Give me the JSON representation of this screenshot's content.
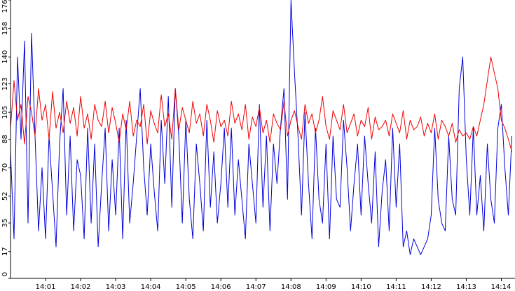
{
  "chart_data": {
    "type": "line",
    "title": "",
    "xlabel": "",
    "ylabel": "",
    "ylim": [
      0,
      176
    ],
    "xlim": [
      0.0,
      14.35
    ],
    "y_ticks": [
      0,
      17,
      35,
      52,
      70,
      88,
      105,
      123,
      140,
      158,
      176
    ],
    "x_ticks": [
      {
        "x": 1,
        "label": "14:01"
      },
      {
        "x": 2,
        "label": "14:02"
      },
      {
        "x": 3,
        "label": "14:03"
      },
      {
        "x": 4,
        "label": "14:04"
      },
      {
        "x": 5,
        "label": "14:05"
      },
      {
        "x": 6,
        "label": "14:06"
      },
      {
        "x": 7,
        "label": "14:07"
      },
      {
        "x": 8,
        "label": "14:08"
      },
      {
        "x": 9,
        "label": "14:09"
      },
      {
        "x": 10,
        "label": "14:10"
      },
      {
        "x": 11,
        "label": "14:11"
      },
      {
        "x": 12,
        "label": "14:12"
      },
      {
        "x": 13,
        "label": "14:13"
      },
      {
        "x": 14,
        "label": "14:14"
      }
    ],
    "grid": false,
    "legend": "none",
    "colors": {
      "series_1": "#0000dd",
      "series_2": "#ee0000"
    },
    "series": [
      {
        "color": "#0000dd",
        "x": [
          0.0,
          0.1,
          0.2,
          0.3,
          0.4,
          0.5,
          0.6,
          0.7,
          0.8,
          0.9,
          1.0,
          1.1,
          1.2,
          1.3,
          1.4,
          1.5,
          1.6,
          1.7,
          1.8,
          1.9,
          2.0,
          2.1,
          2.2,
          2.3,
          2.4,
          2.5,
          2.6,
          2.7,
          2.8,
          2.9,
          3.0,
          3.1,
          3.2,
          3.3,
          3.4,
          3.5,
          3.6,
          3.7,
          3.8,
          3.9,
          4.0,
          4.1,
          4.2,
          4.3,
          4.4,
          4.5,
          4.6,
          4.7,
          4.8,
          4.9,
          5.0,
          5.1,
          5.2,
          5.3,
          5.4,
          5.5,
          5.6,
          5.7,
          5.8,
          5.9,
          6.0,
          6.1,
          6.2,
          6.3,
          6.4,
          6.5,
          6.6,
          6.7,
          6.8,
          6.9,
          7.0,
          7.1,
          7.2,
          7.3,
          7.4,
          7.5,
          7.6,
          7.7,
          7.8,
          7.9,
          8.0,
          8.1,
          8.2,
          8.3,
          8.4,
          8.5,
          8.6,
          8.7,
          8.8,
          8.9,
          9.0,
          9.1,
          9.2,
          9.3,
          9.4,
          9.5,
          9.6,
          9.7,
          9.8,
          9.9,
          10.0,
          10.1,
          10.2,
          10.3,
          10.4,
          10.5,
          10.6,
          10.7,
          10.8,
          10.9,
          11.0,
          11.1,
          11.2,
          11.3,
          11.4,
          11.5,
          11.6,
          11.7,
          11.8,
          11.9,
          12.0,
          12.1,
          12.2,
          12.3,
          12.4,
          12.5,
          12.6,
          12.7,
          12.8,
          12.9,
          13.0,
          13.1,
          13.2,
          13.3,
          13.4,
          13.5,
          13.6,
          13.7,
          13.8,
          13.9,
          14.0,
          14.1,
          14.2,
          14.3
        ],
        "y": [
          80,
          25,
          140,
          88,
          150,
          35,
          155,
          90,
          30,
          70,
          25,
          90,
          55,
          20,
          85,
          120,
          40,
          90,
          30,
          75,
          65,
          25,
          95,
          35,
          85,
          20,
          60,
          95,
          30,
          75,
          40,
          95,
          25,
          100,
          35,
          60,
          90,
          120,
          70,
          40,
          85,
          55,
          30,
          100,
          60,
          115,
          45,
          120,
          90,
          35,
          100,
          50,
          25,
          85,
          60,
          30,
          100,
          45,
          80,
          35,
          60,
          95,
          45,
          95,
          40,
          75,
          50,
          25,
          85,
          60,
          35,
          110,
          45,
          90,
          30,
          85,
          60,
          95,
          120,
          50,
          176,
          130,
          90,
          40,
          105,
          60,
          25,
          95,
          50,
          35,
          85,
          25,
          90,
          50,
          45,
          100,
          70,
          30,
          60,
          85,
          40,
          90,
          60,
          35,
          80,
          20,
          55,
          75,
          30,
          95,
          45,
          85,
          20,
          30,
          15,
          25,
          20,
          15,
          20,
          25,
          40,
          95,
          50,
          35,
          30,
          90,
          50,
          40,
          120,
          140,
          75,
          40,
          95,
          40,
          65,
          30,
          85,
          50,
          35,
          95,
          110,
          70,
          40,
          90
        ]
      },
      {
        "color": "#ee0000",
        "x": [
          0.0,
          0.1,
          0.2,
          0.3,
          0.4,
          0.5,
          0.6,
          0.7,
          0.8,
          0.9,
          1.0,
          1.1,
          1.2,
          1.3,
          1.4,
          1.5,
          1.6,
          1.7,
          1.8,
          1.9,
          2.0,
          2.1,
          2.2,
          2.3,
          2.4,
          2.5,
          2.6,
          2.7,
          2.8,
          2.9,
          3.0,
          3.1,
          3.2,
          3.3,
          3.4,
          3.5,
          3.6,
          3.7,
          3.8,
          3.9,
          4.0,
          4.1,
          4.2,
          4.3,
          4.4,
          4.5,
          4.6,
          4.7,
          4.8,
          4.9,
          5.0,
          5.1,
          5.2,
          5.3,
          5.4,
          5.5,
          5.6,
          5.7,
          5.8,
          5.9,
          6.0,
          6.1,
          6.2,
          6.3,
          6.4,
          6.5,
          6.6,
          6.7,
          6.8,
          6.9,
          7.0,
          7.1,
          7.2,
          7.3,
          7.4,
          7.5,
          7.6,
          7.7,
          7.8,
          7.9,
          8.0,
          8.1,
          8.2,
          8.3,
          8.4,
          8.5,
          8.6,
          8.7,
          8.8,
          8.9,
          9.0,
          9.1,
          9.2,
          9.3,
          9.4,
          9.5,
          9.6,
          9.7,
          9.8,
          9.9,
          10.0,
          10.1,
          10.2,
          10.3,
          10.4,
          10.5,
          10.6,
          10.7,
          10.8,
          10.9,
          11.0,
          11.1,
          11.2,
          11.3,
          11.4,
          11.5,
          11.6,
          11.7,
          11.8,
          11.9,
          12.0,
          12.1,
          12.2,
          12.3,
          12.4,
          12.5,
          12.6,
          12.7,
          12.8,
          12.9,
          13.0,
          13.1,
          13.2,
          13.3,
          13.4,
          13.5,
          13.6,
          13.7,
          13.8,
          13.9,
          14.0,
          14.1,
          14.2,
          14.3
        ],
        "y": [
          95,
          125,
          100,
          110,
          85,
          115,
          105,
          90,
          120,
          100,
          110,
          88,
          118,
          95,
          105,
          92,
          112,
          98,
          108,
          90,
          115,
          95,
          104,
          88,
          110,
          100,
          96,
          112,
          92,
          108,
          98,
          86,
          104,
          94,
          112,
          90,
          100,
          96,
          110,
          85,
          106,
          98,
          92,
          116,
          96,
          104,
          88,
          120,
          94,
          108,
          100,
          92,
          112,
          98,
          104,
          90,
          110,
          100,
          86,
          106,
          96,
          100,
          90,
          112,
          98,
          104,
          94,
          110,
          88,
          102,
          96,
          108,
          92,
          100,
          86,
          104,
          98,
          94,
          112,
          90,
          100,
          106,
          96,
          88,
          110,
          98,
          104,
          92,
          100,
          115,
          96,
          88,
          106,
          100,
          94,
          110,
          92,
          98,
          104,
          90,
          100,
          96,
          108,
          88,
          102,
          94,
          96,
          100,
          90,
          104,
          98,
          92,
          106,
          88,
          100,
          94,
          96,
          102,
          90,
          98,
          92,
          104,
          88,
          100,
          96,
          90,
          98,
          86,
          94,
          90,
          92,
          88,
          96,
          90,
          100,
          110,
          125,
          140,
          130,
          120,
          100,
          95,
          88,
          80
        ]
      }
    ]
  }
}
